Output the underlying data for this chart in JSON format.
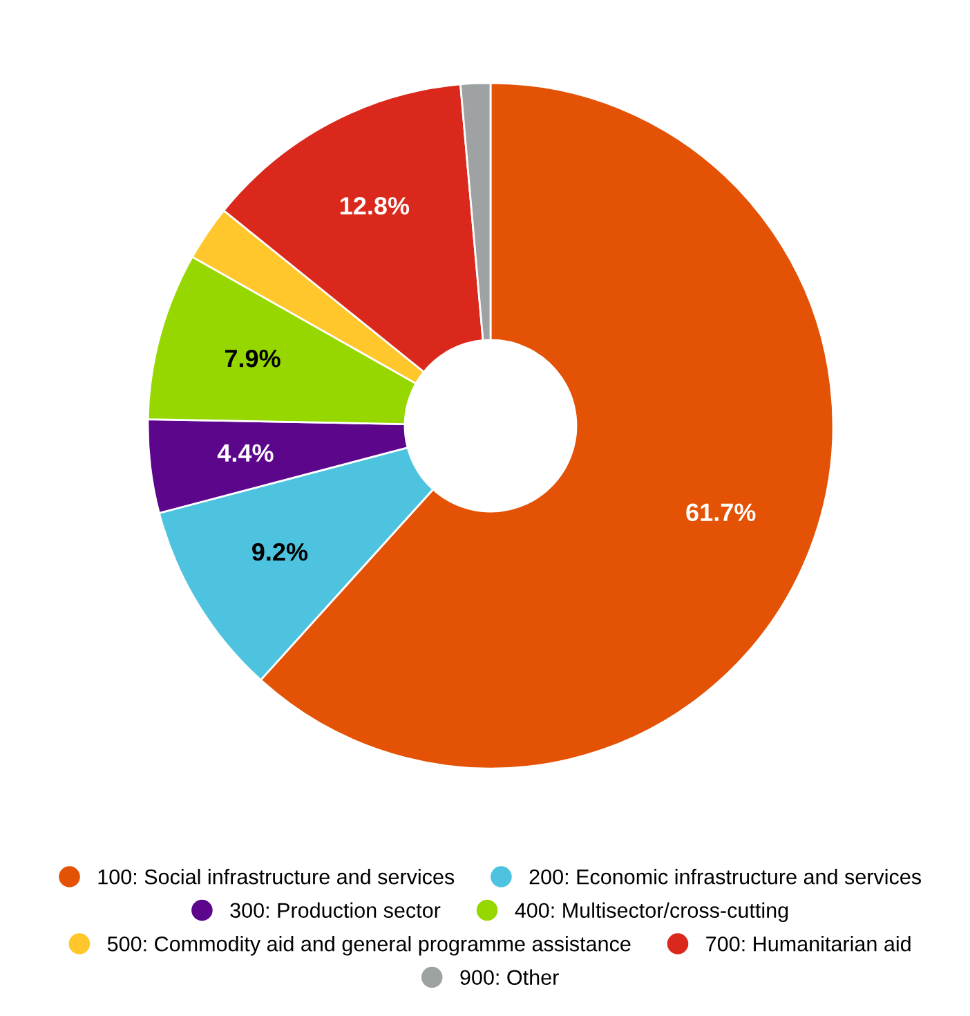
{
  "chart_data": {
    "type": "donut",
    "categories": [
      "100: Social infrastructure and services",
      "200: Economic infrastructure and services",
      "300: Production sector",
      "400: Multisector/cross-cutting",
      "500: Commodity aid and general programme assistance",
      "700: Humanitarian aid",
      "900: Other"
    ],
    "values": [
      61.7,
      9.2,
      4.4,
      7.9,
      2.6,
      12.8,
      1.4
    ],
    "colors": [
      "#e35205",
      "#4ec3e0",
      "#5c068c",
      "#97d700",
      "#ffc72c",
      "#da291c",
      "#9ea2a2"
    ],
    "value_labels": [
      "61.7%",
      "9.2%",
      "4.4%",
      "7.9%",
      null,
      "12.8%",
      null
    ],
    "legend": "bottom"
  }
}
